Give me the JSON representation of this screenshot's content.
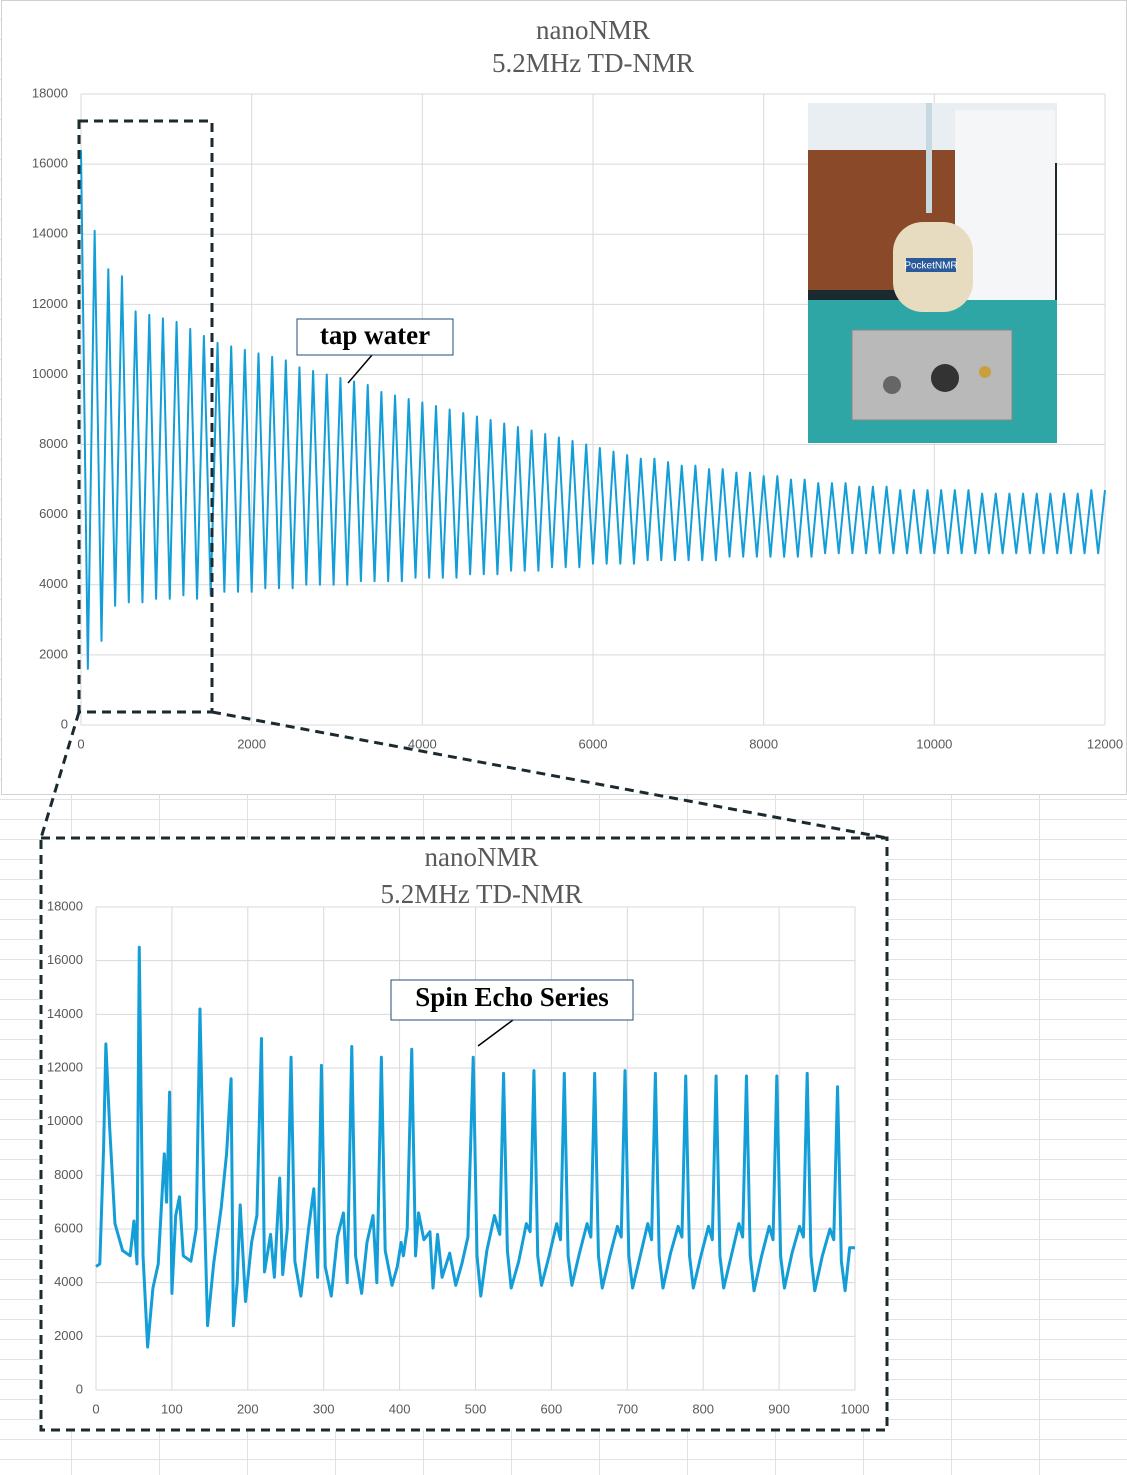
{
  "chart_data": [
    {
      "type": "line",
      "title": "nanoNMR",
      "subtitle": "5.2MHz TD-NMR",
      "annotation": "tap water",
      "image_label": "PocketNMR",
      "grid": true,
      "xlim": [
        0,
        12000
      ],
      "xticks": [
        0,
        2000,
        4000,
        6000,
        8000,
        10000,
        12000
      ],
      "ylim": [
        0,
        18000
      ],
      "yticks": [
        0,
        2000,
        4000,
        6000,
        8000,
        10000,
        12000,
        14000,
        16000,
        18000
      ],
      "x": [
        0,
        80,
        160,
        240,
        320,
        400,
        480,
        560,
        640,
        720,
        800,
        880,
        960,
        1040,
        1120,
        1200,
        1280,
        1360,
        1440,
        1520,
        1600,
        1680,
        1760,
        1840,
        1920,
        2000,
        2080,
        2160,
        2240,
        2320,
        2400,
        2480,
        2560,
        2640,
        2720,
        2800,
        2880,
        2960,
        3040,
        3120,
        3200,
        3280,
        3360,
        3440,
        3520,
        3600,
        3680,
        3760,
        3840,
        3920,
        4000,
        4080,
        4160,
        4240,
        4320,
        4400,
        4480,
        4560,
        4640,
        4720,
        4800,
        4880,
        4960,
        5040,
        5120,
        5200,
        5280,
        5360,
        5440,
        5520,
        5600,
        5680,
        5760,
        5840,
        5920,
        6000,
        6080,
        6160,
        6240,
        6320,
        6400,
        6480,
        6560,
        6640,
        6720,
        6800,
        6880,
        6960,
        7040,
        7120,
        7200,
        7280,
        7360,
        7440,
        7520,
        7600,
        7680,
        7760,
        7840,
        7920,
        8000,
        8080,
        8160,
        8240,
        8320,
        8400,
        8480,
        8560,
        8640,
        8720,
        8800,
        8880,
        8960,
        9040,
        9120,
        9200,
        9280,
        9360,
        9440,
        9520,
        9600,
        9680,
        9760,
        9840,
        9920,
        10000,
        10080,
        10160,
        10240,
        10320,
        10400,
        10480,
        10560,
        10640,
        10720,
        10800,
        10880,
        10960,
        11040,
        11120,
        11200,
        11280,
        11360,
        11440,
        11520,
        11600,
        11680,
        11760,
        11840,
        11920,
        12000
      ],
      "series": [
        {
          "color": "#139ed8",
          "values": [
            16400,
            1600,
            14100,
            2400,
            13000,
            3400,
            12800,
            3500,
            11800,
            3500,
            11700,
            3600,
            11600,
            3600,
            11500,
            3700,
            11300,
            3600,
            11100,
            3700,
            10900,
            3800,
            10800,
            3800,
            10700,
            3800,
            10600,
            3900,
            10500,
            3900,
            10400,
            3900,
            10200,
            4000,
            10100,
            4000,
            10000,
            4000,
            9900,
            4000,
            9800,
            4100,
            9700,
            4100,
            9500,
            4100,
            9400,
            4100,
            9300,
            4200,
            9200,
            4200,
            9100,
            4200,
            9000,
            4200,
            8900,
            4300,
            8800,
            4300,
            8700,
            4300,
            8600,
            4400,
            8500,
            4400,
            8400,
            4400,
            8300,
            4500,
            8200,
            4500,
            8100,
            4500,
            8000,
            4600,
            7900,
            4600,
            7800,
            4600,
            7700,
            4600,
            7600,
            4700,
            7600,
            4700,
            7500,
            4700,
            7400,
            4700,
            7400,
            4700,
            7300,
            4700,
            7300,
            4800,
            7200,
            4800,
            7200,
            4800,
            7100,
            4800,
            7100,
            4800,
            7000,
            4800,
            7000,
            4800,
            6900,
            4900,
            6900,
            4900,
            6900,
            4900,
            6800,
            4900,
            6800,
            4900,
            6800,
            4900,
            6700,
            4900,
            6700,
            4900,
            6700,
            4900,
            6700,
            4900,
            6700,
            4900,
            6700,
            4900,
            6600,
            4900,
            6600,
            4900,
            6600,
            4900,
            6600,
            4900,
            6600,
            4900,
            6600,
            4900,
            6600,
            4900,
            6600,
            4900,
            6700,
            4900,
            6700
          ]
        }
      ]
    },
    {
      "type": "line",
      "title": "nanoNMR",
      "subtitle": "5.2MHz TD-NMR",
      "annotation": "Spin Echo Series",
      "grid": true,
      "xlim": [
        0,
        1000
      ],
      "xticks": [
        0,
        100,
        200,
        300,
        400,
        500,
        600,
        700,
        800,
        900,
        1000
      ],
      "ylim": [
        0,
        18000
      ],
      "yticks": [
        0,
        2000,
        4000,
        6000,
        8000,
        10000,
        12000,
        14000,
        16000,
        18000
      ],
      "x": [
        0,
        5,
        10,
        13,
        18,
        25,
        35,
        45,
        50,
        54,
        57,
        62,
        68,
        75,
        82,
        90,
        93,
        97,
        100,
        105,
        110,
        115,
        125,
        132,
        137,
        142,
        147,
        155,
        165,
        172,
        178,
        181,
        186,
        190,
        197,
        205,
        212,
        218,
        222,
        230,
        235,
        242,
        246,
        252,
        257,
        262,
        270,
        280,
        287,
        292,
        297,
        302,
        310,
        318,
        326,
        331,
        337,
        342,
        350,
        357,
        365,
        370,
        376,
        381,
        390,
        397,
        402,
        405,
        410,
        416,
        421,
        425,
        432,
        440,
        444,
        450,
        456,
        466,
        474,
        482,
        490,
        497,
        502,
        507,
        515,
        525,
        532,
        537,
        542,
        547,
        557,
        567,
        572,
        577,
        582,
        587,
        597,
        607,
        612,
        617,
        622,
        627,
        637,
        647,
        652,
        657,
        662,
        667,
        677,
        687,
        692,
        697,
        702,
        707,
        717,
        727,
        732,
        737,
        742,
        747,
        757,
        767,
        772,
        777,
        782,
        787,
        797,
        807,
        812,
        817,
        822,
        827,
        837,
        847,
        852,
        857,
        862,
        867,
        877,
        887,
        892,
        897,
        902,
        907,
        917,
        927,
        932,
        937,
        942,
        947,
        957,
        967,
        972,
        977,
        982,
        987,
        993,
        1000
      ],
      "series": [
        {
          "color": "#139ed8",
          "values": [
            4600,
            4700,
            9000,
            12900,
            9800,
            6200,
            5200,
            5000,
            6300,
            4700,
            16500,
            5000,
            1600,
            3800,
            4700,
            8800,
            7000,
            11100,
            3600,
            6500,
            7200,
            5000,
            4800,
            6000,
            14200,
            7600,
            2400,
            4700,
            6800,
            8800,
            11600,
            2400,
            4000,
            6900,
            3300,
            5500,
            6500,
            13100,
            4400,
            5800,
            4200,
            7900,
            4300,
            6000,
            12400,
            4800,
            3500,
            6000,
            7500,
            4200,
            12100,
            4600,
            3500,
            5700,
            6600,
            4000,
            12800,
            5000,
            3600,
            5500,
            6500,
            4000,
            12400,
            5200,
            3900,
            4600,
            5500,
            5000,
            6000,
            12700,
            5000,
            6600,
            5600,
            5900,
            3800,
            5800,
            4200,
            5100,
            3900,
            4700,
            5700,
            12400,
            5000,
            3500,
            5200,
            6500,
            5800,
            11800,
            5200,
            3800,
            4800,
            6200,
            5900,
            11900,
            5000,
            3900,
            5000,
            6200,
            5600,
            11800,
            5000,
            3900,
            5100,
            6200,
            5700,
            11800,
            5000,
            3800,
            5000,
            6100,
            5700,
            11900,
            5000,
            3800,
            5000,
            6200,
            5600,
            11800,
            5000,
            3800,
            5100,
            6100,
            5700,
            11700,
            5000,
            3800,
            5000,
            6100,
            5600,
            11700,
            5000,
            3800,
            5000,
            6200,
            5700,
            11700,
            5000,
            3700,
            5000,
            6100,
            5600,
            11700,
            5000,
            3800,
            5100,
            6100,
            5700,
            11800,
            5000,
            3700,
            5000,
            6000,
            5600,
            11300,
            4800,
            3700,
            5300,
            5300
          ]
        }
      ]
    }
  ]
}
